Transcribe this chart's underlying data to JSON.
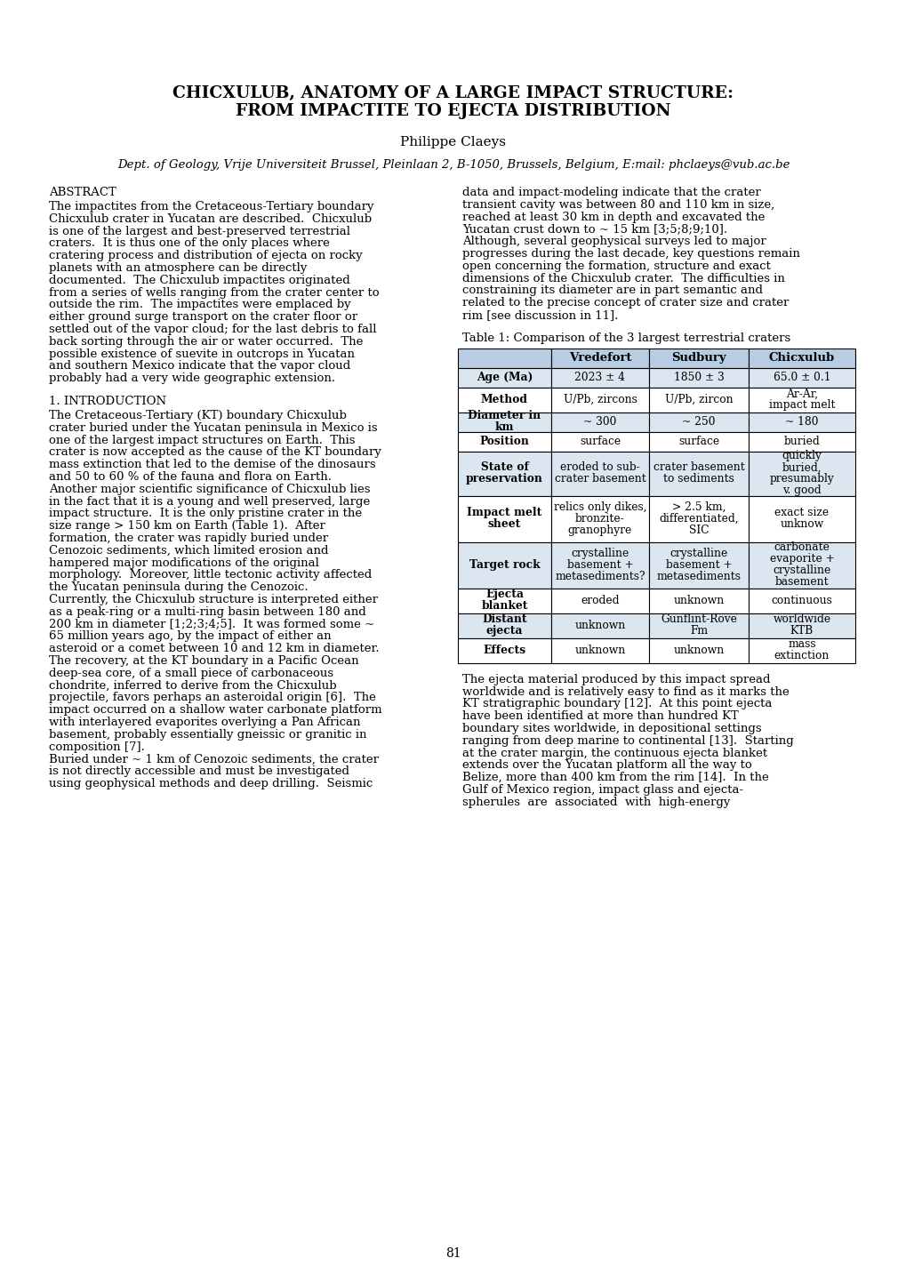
{
  "title_line1": "CHICXULUB, ANATOMY OF A LARGE IMPACT STRUCTURE:",
  "title_line2": "FROM IMPACTITE TO EJECTA DISTRIBUTION",
  "author": "Philippe Claeys",
  "affiliation": "Dept. of Geology, Vrije Universiteit Brussel, Pleinlaan 2, B-1050, Brussels, Belgium, E:mail: phclaeys@vub.ac.be",
  "abstract_title": "ABSTRACT",
  "abstract_text": "The impactites from the Cretaceous-Tertiary boundary Chicxulub crater in Yucatan are described.  Chicxulub is one of the largest and best-preserved terrestrial craters.  It is thus one of the only places where cratering process and distribution of ejecta on rocky planets with an atmosphere can be directly documented.  The Chicxulub impactites originated from a series of wells ranging from the crater center to outside the rim.  The impactites were emplaced by either ground surge transport on the crater floor or settled out of the vapor cloud; for the last debris to fall back sorting through the air or water occurred.  The possible existence of suevite in outcrops in Yucatan and southern Mexico indicate that the vapor cloud probably had a very wide geographic extension.",
  "intro_title": "1. INTRODUCTION",
  "intro_text": "The Cretaceous-Tertiary (KT) boundary Chicxulub crater buried under the Yucatan peninsula in Mexico is one of the largest impact structures on Earth.  This crater is now accepted as the cause of the KT boundary mass extinction that led to the demise of the dinosaurs and 50 to 60 % of the fauna and flora on Earth.  Another major scientific significance of Chicxulub lies in the fact that it is a young and well preserved, large impact structure.  It is the only pristine crater in the size range > 150 km on Earth (Table 1).  After formation, the crater was rapidly buried under Cenozoic sediments, which limited erosion and hampered major modifications of the original morphology.  Moreover, little tectonic activity affected the Yucatan peninsula during the Cenozoic.\nCurrently, the Chicxulub structure is interpreted either as a peak-ring or a multi-ring basin between 180 and 200 km in diameter [1;2;3;4;5].  It was formed some ~ 65 million years ago, by the impact of either an asteroid or a comet between 10 and 12 km in diameter.\nThe recovery, at the KT boundary in a Pacific Ocean deep-sea core, of a small piece of carbonaceous chondrite, inferred to derive from the Chicxulub projectile, favors perhaps an asteroidal origin [6].  The impact occurred on a shallow water carbonate platform with interlayered evaporites overlying a Pan African basement, probably essentially gneissic or granitic in composition [7].\nBuried under ~ 1 km of Cenozoic sediments, the crater is not directly accessible and must be investigated using geophysical methods and deep drilling.  Seismic",
  "right_col_text": "data and impact-modeling indicate that the crater transient cavity was between 80 and 110 km in size, reached at least 30 km in depth and excavated the Yucatan crust down to ~ 15 km [3;5;8;9;10]. Although, several geophysical surveys led to major progresses during the last decade, key questions remain open concerning the formation, structure and exact dimensions of the Chicxulub crater.  The difficulties in constraining its diameter are in part semantic and related to the precise concept of crater size and crater rim [see discussion in 11].",
  "table_title": "Table 1: Comparison of the 3 largest terrestrial craters",
  "table_headers": [
    "",
    "Vredefort",
    "Sudbury",
    "Chicxulub"
  ],
  "table_rows": [
    [
      "Age (Ma)",
      "2023 ± 4",
      "1850 ± 3",
      "65.0 ± 0.1"
    ],
    [
      "Method",
      "U/Pb, zircons",
      "U/Pb, zircon",
      "Ar-Ar,\nimpact melt"
    ],
    [
      "Diameter in\nkm",
      "~ 300",
      "~ 250",
      "~ 180"
    ],
    [
      "Position",
      "surface",
      "surface",
      "buried"
    ],
    [
      "State of\npreservation",
      "eroded to sub-\ncrater basement",
      "crater basement\nto sediments",
      "quickly\nburied,\npresumably\nv. good"
    ],
    [
      "Impact melt\nsheet",
      "relics only dikes,\nbronzite-\ngranophyre",
      "> 2.5 km,\ndifferentiated,\nSIC",
      "exact size\nunknow"
    ],
    [
      "Target rock",
      "crystalline\nbasement +\nmetasediments?",
      "crystalline\nbasement +\nmetasediments",
      "carbonate\nevaporite +\ncrystalline\nbasement"
    ],
    [
      "Ejecta\nblanket",
      "eroded",
      "unknown",
      "continuous"
    ],
    [
      "Distant\nejecta",
      "unknown",
      "Gunflint-Rove\nFm",
      "worldwide\nKTB"
    ],
    [
      "Effects",
      "unknown",
      "unknown",
      "mass\nextinction"
    ]
  ],
  "right_col_text2": "The ejecta material produced by this impact spread worldwide and is relatively easy to find as it marks the KT stratigraphic boundary [12].  At this point ejecta have been identified at more than hundred KT boundary sites worldwide, in depositional settings ranging from deep marine to continental [13].  Starting at the crater margin, the continuous ejecta blanket extends over the Yucatan platform all the way to Belize, more than 400 km from the rim [14].  In the Gulf of Mexico region, impact glass and ejecta-spherules  are  associated  with  high-energy",
  "page_number": "81",
  "bg_color": "#ffffff",
  "text_color": "#000000",
  "table_header_bg": "#b8cce4",
  "table_row_bg1": "#ffffff",
  "table_row_bg2": "#dce6f1"
}
